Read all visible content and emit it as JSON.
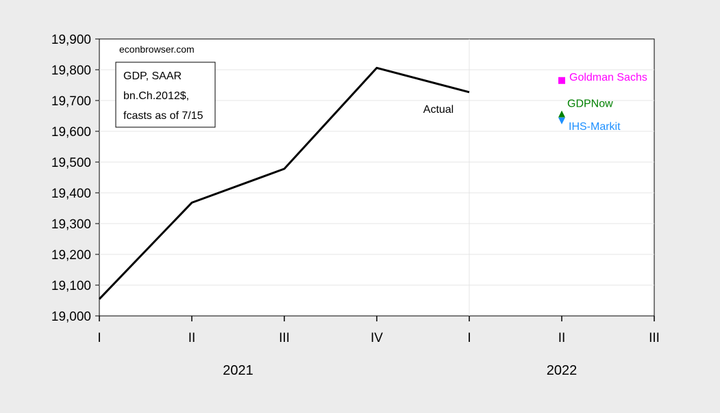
{
  "chart_data": {
    "type": "line",
    "source": "econbrowser.com",
    "note_lines": [
      "GDP, SAAR",
      "bn.Ch.2012$,",
      "fcasts as of 7/15"
    ],
    "quarter_labels": [
      "I",
      "II",
      "III",
      "IV",
      "I",
      "II",
      "III"
    ],
    "years": [
      {
        "label": "2021"
      },
      {
        "label": "2022"
      }
    ],
    "ylim": [
      19000,
      19900
    ],
    "yticks": [
      19000,
      19100,
      19200,
      19300,
      19400,
      19500,
      19600,
      19700,
      19800,
      19900
    ],
    "ytick_labels": [
      "19,000",
      "19,100",
      "19,200",
      "19,300",
      "19,400",
      "19,500",
      "19,600",
      "19,700",
      "19,800",
      "19,900"
    ],
    "grid": true,
    "series": [
      {
        "name": "Actual",
        "color": "#000000",
        "x": [
          0,
          1,
          2,
          3,
          4
        ],
        "values": [
          19055,
          19368,
          19478,
          19806,
          19727
        ]
      }
    ],
    "forecasts": [
      {
        "name": "Goldman Sachs",
        "color": "#ff00ff",
        "x": 5,
        "value": 19765,
        "marker": "square"
      },
      {
        "name": "GDPNow",
        "color": "#008000",
        "x": 5,
        "value": 19652,
        "marker": "triangle-up"
      },
      {
        "name": "IHS-Markit",
        "color": "#1e90ff",
        "x": 5,
        "value": 19638,
        "marker": "triangle-down"
      }
    ]
  }
}
